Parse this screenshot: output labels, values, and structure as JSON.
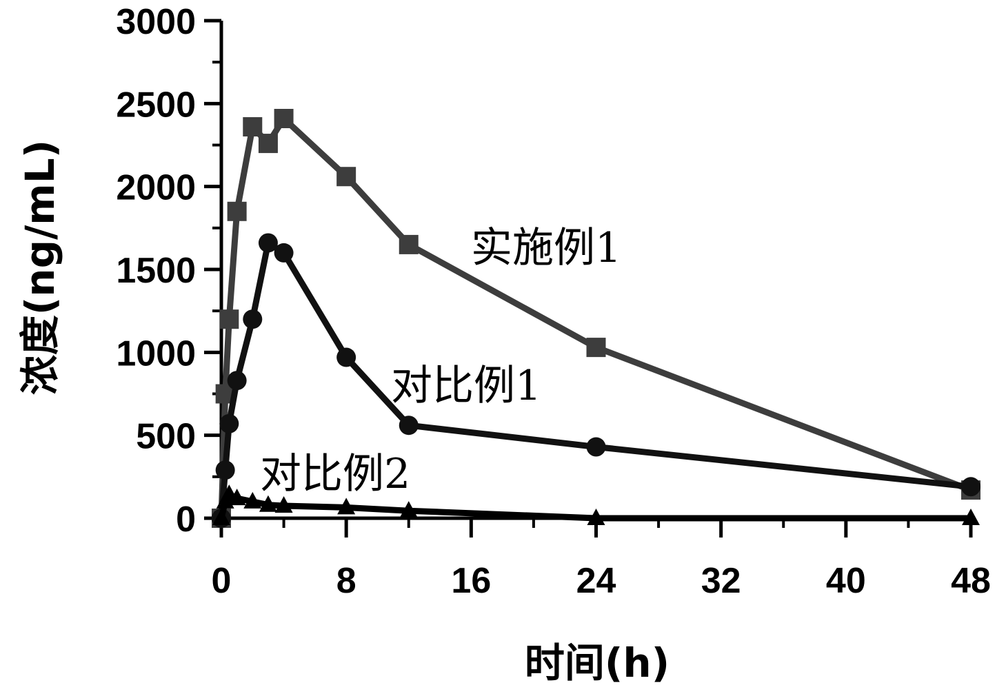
{
  "chart_data": {
    "type": "line",
    "xlabel": "时间(h)",
    "ylabel": "浓度(ng/mL)",
    "xlim": [
      0,
      48
    ],
    "ylim": [
      0,
      3000
    ],
    "x_ticks": [
      "0",
      "8",
      "16",
      "24",
      "32",
      "40",
      "48"
    ],
    "y_ticks": [
      "0",
      "500",
      "1000",
      "1500",
      "2000",
      "2500",
      "3000"
    ],
    "grid": false,
    "series": [
      {
        "name": "实施例1",
        "marker": "square",
        "color": "#3d3d3d",
        "x": [
          0,
          0.25,
          0.5,
          1,
          2,
          3,
          4,
          8,
          12,
          24,
          48
        ],
        "y": [
          0,
          750,
          1200,
          1850,
          2360,
          2260,
          2410,
          2060,
          1650,
          1030,
          170
        ]
      },
      {
        "name": "对比例1",
        "marker": "circle",
        "color": "#111111",
        "x": [
          0,
          0.25,
          0.5,
          1,
          2,
          3,
          4,
          8,
          12,
          24,
          48
        ],
        "y": [
          0,
          290,
          570,
          830,
          1200,
          1660,
          1600,
          970,
          560,
          430,
          190
        ]
      },
      {
        "name": "对比例2",
        "marker": "triangle",
        "color": "#000000",
        "x": [
          0,
          0.25,
          0.5,
          1,
          2,
          3,
          4,
          8,
          12,
          24,
          48
        ],
        "y": [
          0,
          100,
          145,
          120,
          100,
          80,
          75,
          65,
          45,
          0,
          0
        ]
      }
    ]
  }
}
